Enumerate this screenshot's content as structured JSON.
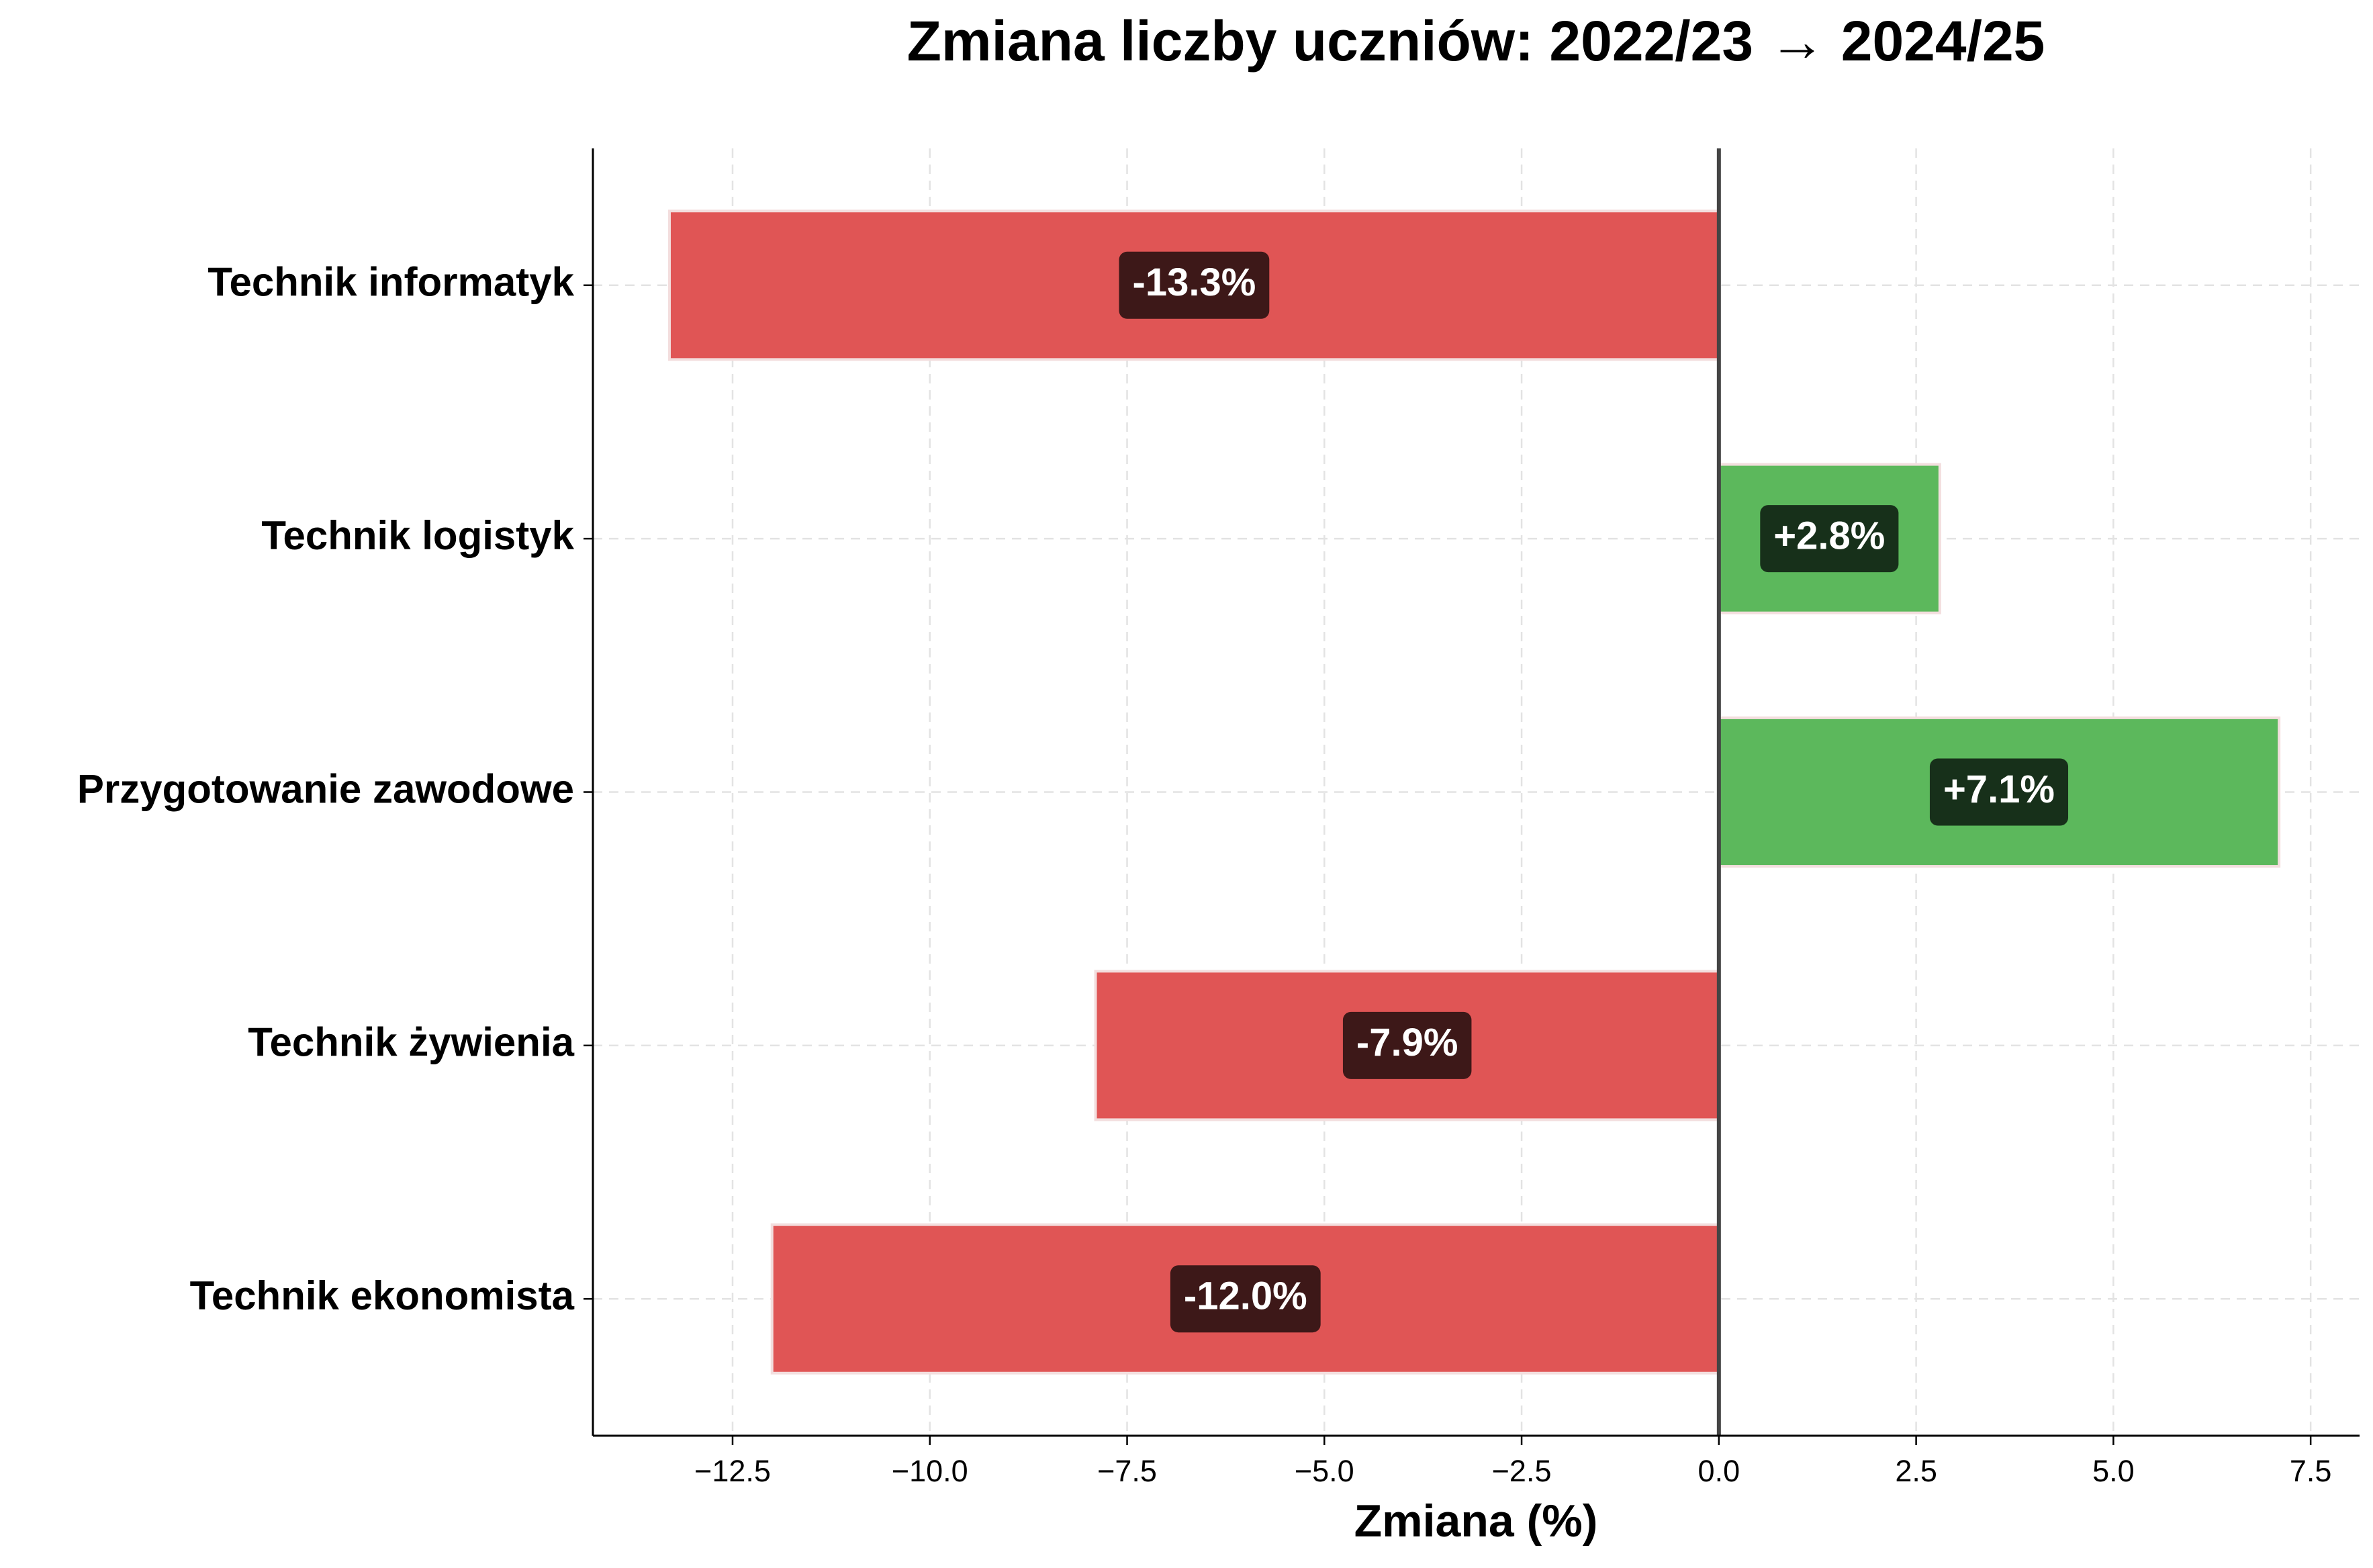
{
  "chart_data": {
    "type": "barh",
    "title": "Zmiana liczby uczniów: 2022/23 → 2024/25",
    "x_label": "Zmiana (%)",
    "categories": [
      "Technik informatyk",
      "Technik logistyk",
      "Przygotowanie zawodowe",
      "Technik żywienia",
      "Technik ekonomista"
    ],
    "values": [
      -13.3,
      2.8,
      7.1,
      -7.9,
      -12.0
    ],
    "value_labels": [
      "-13.3%",
      "+2.8%",
      "+7.1%",
      "-7.9%",
      "-12.0%"
    ],
    "colors": [
      "#e05555",
      "#5cb85c",
      "#5cb85c",
      "#e05555",
      "#e05555"
    ],
    "xlim": [
      -14.27,
      8.12
    ],
    "xticks": [
      {
        "value": -12.5,
        "label": "−12.5"
      },
      {
        "value": -10,
        "label": "−10.0"
      },
      {
        "value": -7.5,
        "label": "−7.5"
      },
      {
        "value": -5,
        "label": "−5.0"
      },
      {
        "value": -2.5,
        "label": "−2.5"
      },
      {
        "value": 0,
        "label": "0.0"
      },
      2.5,
      {
        "value": 5,
        "label": "5.0"
      },
      7.5
    ],
    "grid": true
  }
}
